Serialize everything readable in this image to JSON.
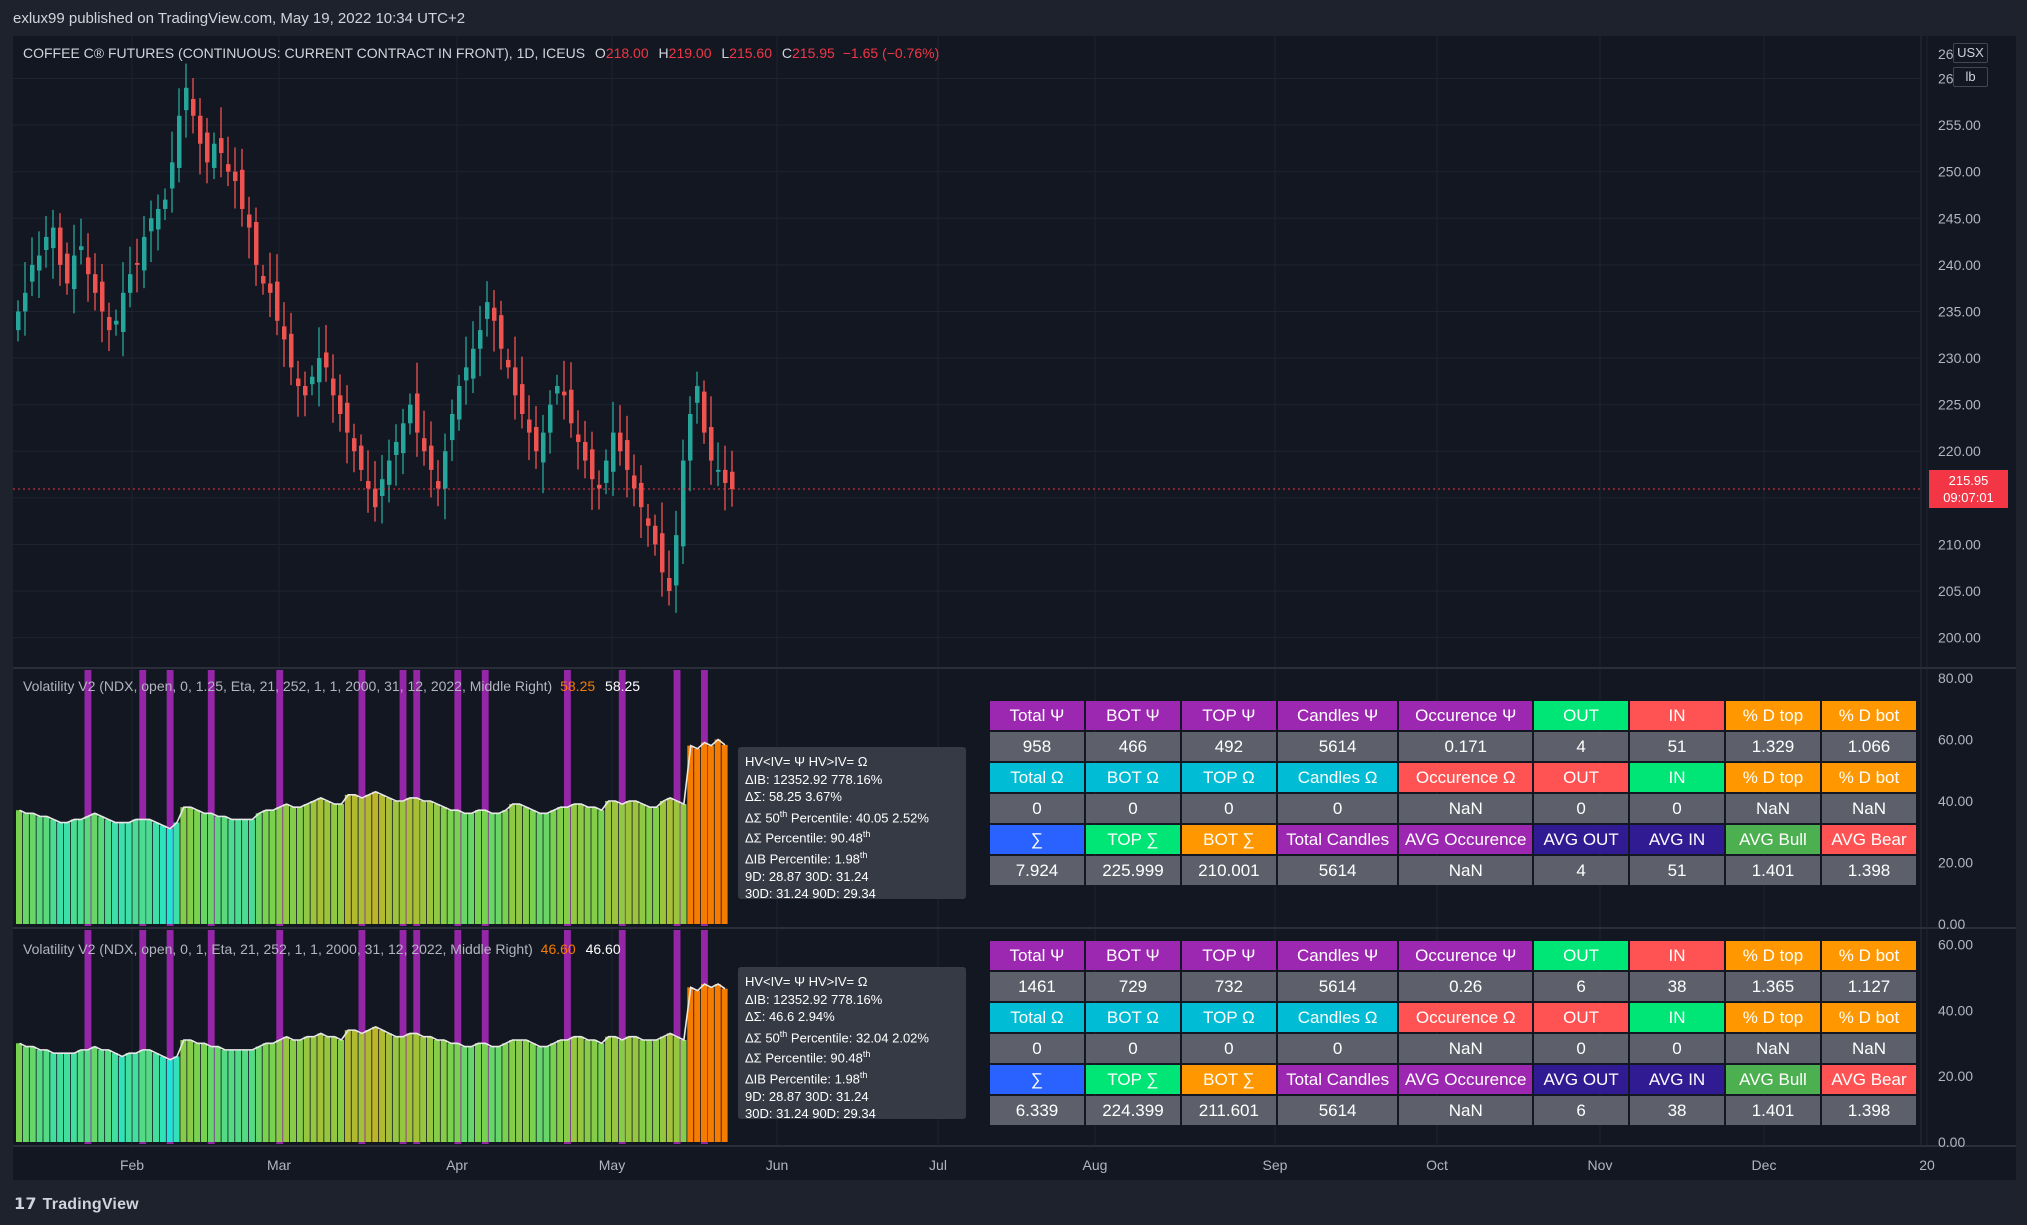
{
  "header": {
    "publisher_line": "exlux99 published on TradingView.com, May 19, 2022 10:34 UTC+2"
  },
  "footer": {
    "logo_text": "TradingView"
  },
  "colors": {
    "up": "#26a69a",
    "down": "#ef5350",
    "bg": "#131722",
    "purple": "#9c27b0",
    "orange": "#f57c00",
    "last_price": "#f23645"
  },
  "main_legend": {
    "symbol": "COFFEE C® FUTURES (CONTINUOUS: CURRENT CONTRACT IN FRONT), 1D, ICEUS",
    "o_label": "O",
    "o": "218.00",
    "h_label": "H",
    "h": "219.00",
    "l_label": "L",
    "l": "215.60",
    "c_label": "C",
    "c": "215.95",
    "change": "−1.65 (−0.76%)"
  },
  "price_axis": {
    "currency": "USX",
    "unit": "lb",
    "top_cut_label": "26",
    "last_price": "215.95",
    "countdown": "09:07:01"
  },
  "indicators": [
    {
      "legend": "Volatility V2 (NDX, open, 0, 1.25, Eta, 21, 252, 1, 1, 2000, 31, 12, 2022, Middle Right)",
      "value1": "58.25",
      "value2": "58.25",
      "tooltip": {
        "line1": "HV<IV= Ψ  HV>IV= Ω",
        "line2": "ΔΙΒ: 12352.92  778.16%",
        "line3": "ΔΣ: 58.25  3.67%",
        "line4_a": "ΔΣ 50",
        "line4_sup": "th",
        "line4_b": " Percentile: 40.05  2.52%",
        "line5_a": "ΔΣ Percentile: 90.48",
        "line5_sup": "th",
        "line6_a": "ΔΙΒ Percentile: 1.98",
        "line6_sup": "th",
        "line7": "9D: 28.87  30D: 31.24",
        "line8": "30D: 31.24  90D: 29.34"
      },
      "table": [
        [
          "Total Ψ",
          "BOT Ψ",
          "TOP Ψ",
          "Candles Ψ",
          "Occurence Ψ",
          "OUT",
          "IN",
          "% D top",
          "% D bot"
        ],
        [
          "958",
          "466",
          "492",
          "5614",
          "0.171",
          "4",
          "51",
          "1.329",
          "1.066"
        ],
        [
          "Total Ω",
          "BOT Ω",
          "TOP Ω",
          "Candles Ω",
          "Occurence Ω",
          "OUT",
          "IN",
          "% D top",
          "% D bot"
        ],
        [
          "0",
          "0",
          "0",
          "0",
          "NaN",
          "0",
          "0",
          "NaN",
          "NaN"
        ],
        [
          "∑",
          "TOP ∑",
          "BOT ∑",
          "Total Candles",
          "AVG Occurence",
          "AVG OUT",
          "AVG IN",
          "AVG Bull",
          "AVG Bear"
        ],
        [
          "7.924",
          "225.999",
          "210.001",
          "5614",
          "NaN",
          "4",
          "51",
          "1.401",
          "1.398"
        ]
      ],
      "axis_labels": [
        "80.00",
        "60.00",
        "40.00",
        "20.00",
        "0.00"
      ]
    },
    {
      "legend": "Volatility V2 (NDX, open, 0, 1, Eta, 21, 252, 1, 1, 2000, 31, 12, 2022, Middle Right)",
      "value1": "46.60",
      "value2": "46.60",
      "tooltip": {
        "line1": "HV<IV= Ψ  HV>IV= Ω",
        "line2": "ΔΙΒ: 12352.92  778.16%",
        "line3": "ΔΣ: 46.6  2.94%",
        "line4_a": "ΔΣ 50",
        "line4_sup": "th",
        "line4_b": " Percentile: 32.04  2.02%",
        "line5_a": "ΔΣ Percentile: 90.48",
        "line5_sup": "th",
        "line6_a": "ΔΙΒ Percentile: 1.98",
        "line6_sup": "th",
        "line7": "9D: 28.87  30D: 31.24",
        "line8": "30D: 31.24  90D: 29.34"
      },
      "table": [
        [
          "Total Ψ",
          "BOT Ψ",
          "TOP Ψ",
          "Candles Ψ",
          "Occurence Ψ",
          "OUT",
          "IN",
          "% D top",
          "% D bot"
        ],
        [
          "1461",
          "729",
          "732",
          "5614",
          "0.26",
          "6",
          "38",
          "1.365",
          "1.127"
        ],
        [
          "Total Ω",
          "BOT Ω",
          "TOP Ω",
          "Candles Ω",
          "Occurence Ω",
          "OUT",
          "IN",
          "% D top",
          "% D bot"
        ],
        [
          "0",
          "0",
          "0",
          "0",
          "NaN",
          "0",
          "0",
          "NaN",
          "NaN"
        ],
        [
          "∑",
          "TOP ∑",
          "BOT ∑",
          "Total Candles",
          "AVG Occurence",
          "AVG OUT",
          "AVG IN",
          "AVG Bull",
          "AVG Bear"
        ],
        [
          "6.339",
          "224.399",
          "211.601",
          "5614",
          "NaN",
          "6",
          "38",
          "1.401",
          "1.398"
        ]
      ],
      "axis_labels": [
        "60.00",
        "40.00",
        "20.00",
        "0.00"
      ]
    }
  ],
  "table_cell_colors": {
    "header_row_1": [
      "#9c27b0",
      "#9c27b0",
      "#9c27b0",
      "#9c27b0",
      "#9c27b0",
      "#00e676",
      "#ff5252",
      "#ff9800",
      "#ff9800"
    ],
    "header_row_2": [
      "#00bcd4",
      "#00bcd4",
      "#00bcd4",
      "#00bcd4",
      "#ff5252",
      "#ff5252",
      "#00e676",
      "#ff9800",
      "#ff9800"
    ],
    "header_row_3": [
      "#2962ff",
      "#00e676",
      "#ff9800",
      "#9c27b0",
      "#9c27b0",
      "#311b92",
      "#311b92",
      "#4caf50",
      "#ff5252"
    ],
    "value_row": "#5d606b"
  },
  "chart_data": [
    {
      "type": "candlestick",
      "title": "COFFEE C® FUTURES (CONTINUOUS: CURRENT CONTRACT IN FRONT), 1D, ICEUS",
      "x_tick_labels": [
        "Feb",
        "Mar",
        "Apr",
        "May",
        "Jun",
        "Jul",
        "Aug",
        "Sep",
        "Oct",
        "Nov",
        "Dec",
        "20"
      ],
      "y_tick_labels": [
        "260.00",
        "255.00",
        "250.00",
        "245.00",
        "240.00",
        "235.00",
        "230.00",
        "225.00",
        "220.00",
        "215.00",
        "210.00",
        "205.00",
        "200.00"
      ],
      "ylim": [
        197.6,
        263.7
      ],
      "last_price": 215.95,
      "closes": [
        235,
        237,
        240,
        241,
        243,
        244,
        240,
        238,
        241,
        242,
        239,
        237,
        235,
        233,
        234,
        237,
        239,
        240,
        243,
        245,
        246,
        247,
        251,
        256,
        259,
        256,
        253,
        251,
        253,
        252,
        250,
        249,
        246,
        244,
        240,
        238,
        237,
        234,
        232,
        229,
        227,
        226,
        228,
        230,
        229,
        226,
        224,
        222,
        220,
        218,
        216,
        214,
        217,
        219,
        221,
        223,
        225,
        222,
        220,
        218,
        216,
        220,
        224,
        227,
        229,
        231,
        233,
        236,
        234,
        231,
        229,
        226,
        224,
        222,
        220,
        222,
        225,
        227,
        226,
        223,
        221,
        219,
        217,
        216,
        219,
        222,
        220,
        218,
        216,
        214,
        212,
        210,
        207,
        205,
        211,
        219,
        224,
        227,
        222,
        219,
        218,
        216.6,
        215.95
      ]
    },
    {
      "type": "bar",
      "title": "Volatility V2",
      "ylim": [
        0,
        80
      ],
      "y_tick_labels": [
        "80.00",
        "60.00",
        "40.00",
        "20.00",
        "0.00"
      ],
      "values": [
        37,
        36,
        36,
        35,
        35,
        34,
        33,
        33,
        34,
        34,
        35,
        36,
        35,
        34,
        33,
        33,
        33,
        34,
        34,
        34,
        33,
        32,
        31,
        33,
        38,
        38,
        37,
        36,
        36,
        35,
        35,
        34,
        34,
        34,
        34,
        36,
        37,
        37,
        38,
        39,
        38,
        38,
        39,
        40,
        41,
        40,
        39,
        39,
        42,
        42,
        41,
        42,
        43,
        42,
        41,
        40,
        40,
        41,
        41,
        40,
        40,
        39,
        38,
        37,
        37,
        36,
        36,
        37,
        37,
        36,
        36,
        37,
        39,
        39,
        38,
        37,
        36,
        36,
        37,
        38,
        38,
        39,
        39,
        38,
        38,
        37,
        40,
        40,
        39,
        40,
        40,
        39,
        38,
        38,
        40,
        41,
        40,
        39,
        58,
        57,
        59,
        58,
        60,
        58.25
      ]
    },
    {
      "type": "bar",
      "title": "Volatility V2",
      "ylim": [
        0,
        62
      ],
      "y_tick_labels": [
        "60.00",
        "40.00",
        "20.00",
        "0.00"
      ],
      "values": [
        30,
        29,
        29,
        28,
        28,
        27,
        27,
        27,
        27,
        28,
        28,
        29,
        28,
        28,
        27,
        26,
        27,
        27,
        28,
        28,
        27,
        26,
        25,
        26,
        31,
        31,
        30,
        30,
        29,
        29,
        28,
        28,
        28,
        28,
        28,
        29,
        30,
        30,
        31,
        32,
        31,
        31,
        32,
        32,
        33,
        32,
        32,
        31,
        34,
        34,
        33,
        34,
        35,
        34,
        33,
        32,
        32,
        33,
        33,
        32,
        32,
        31,
        31,
        30,
        30,
        29,
        29,
        30,
        30,
        29,
        29,
        30,
        31,
        31,
        31,
        30,
        29,
        29,
        30,
        31,
        31,
        32,
        32,
        31,
        31,
        30,
        32,
        32,
        31,
        32,
        32,
        31,
        31,
        31,
        32,
        33,
        32,
        31,
        47,
        46,
        48,
        47,
        48,
        46.6
      ]
    }
  ]
}
